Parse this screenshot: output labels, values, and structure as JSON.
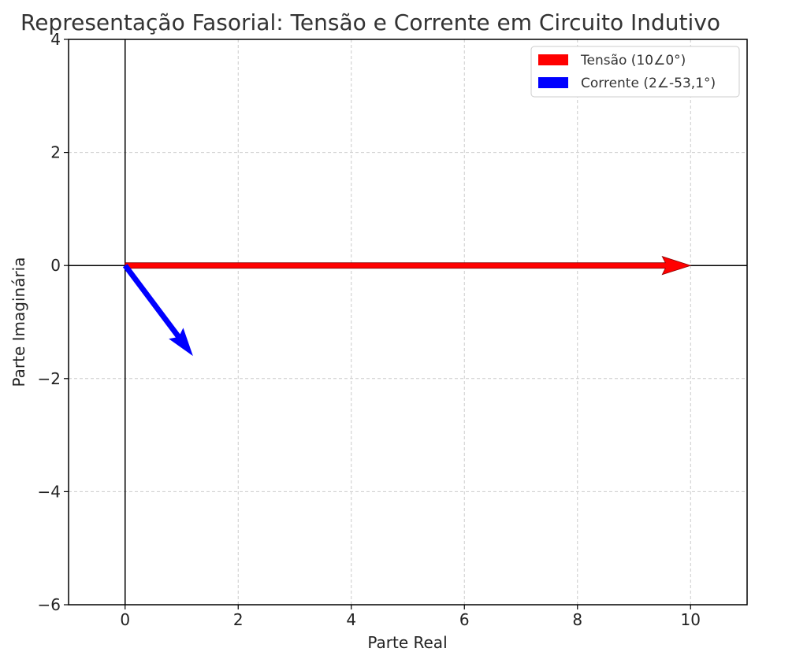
{
  "chart_data": {
    "type": "phasor",
    "title": "Representação Fasorial: Tensão e Corrente em Circuito Indutivo",
    "xlabel": "Parte Real",
    "ylabel": "Parte Imaginária",
    "xlim": [
      -1,
      11
    ],
    "ylim": [
      -6,
      4
    ],
    "xticks": [
      0,
      2,
      4,
      6,
      8,
      10
    ],
    "xtick_labels": [
      "0",
      "2",
      "4",
      "6",
      "8",
      "10"
    ],
    "yticks": [
      4,
      2,
      0,
      -2,
      -4,
      -6
    ],
    "ytick_labels": [
      "4",
      "2",
      "0",
      "−2",
      "−4",
      "−6"
    ],
    "grid": true,
    "legend_position": "top-right",
    "series": [
      {
        "name": "Tensão (10∠0°)",
        "x0": 0,
        "y0": 0,
        "x1": 10,
        "y1": 0,
        "color": "#ff0000"
      },
      {
        "name": "Corrente (2∠-53,1°)",
        "x0": 0,
        "y0": 0,
        "x1": 1.2,
        "y1": -1.6,
        "color": "#0000ff"
      }
    ]
  }
}
